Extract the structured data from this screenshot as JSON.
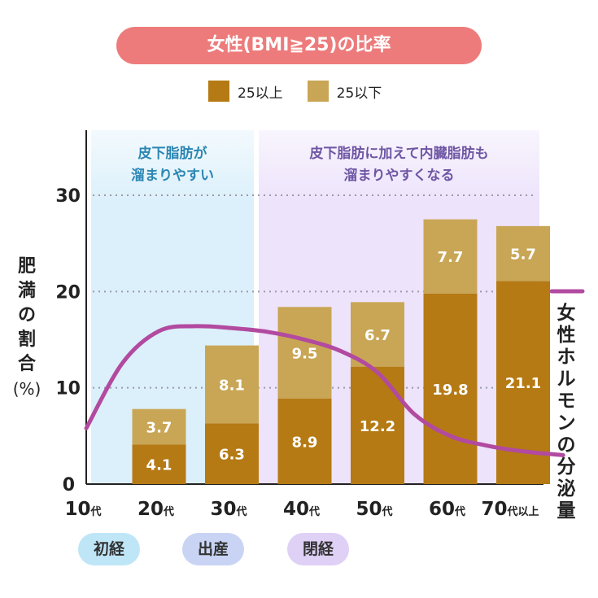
{
  "title": "女性(BMI≧25)の比率",
  "legend": {
    "above_label": "25以上",
    "below_label": "25以下"
  },
  "colors": {
    "above": "#b57a14",
    "below": "#c9a655",
    "curve": "#b24aa0",
    "region_young_bg": "#dcf0fb",
    "region_old_bg": "#ede3fb",
    "region_young_text": "#2b86b3",
    "region_old_text": "#6e56a4",
    "title_bg": "#ed7b7b",
    "pill_menarche": "#bfe6f7",
    "pill_childbirth": "#c9d4f5",
    "pill_menopause": "#dfd0f6"
  },
  "y_axis_label": [
    "肥",
    "満",
    "の",
    "割",
    "合",
    "(%)"
  ],
  "right_label": [
    "女",
    "性",
    "ホ",
    "ル",
    "モ",
    "ン",
    "の",
    "分",
    "泌",
    "量"
  ],
  "regions": {
    "young": [
      "皮下脂肪が",
      "溜まりやすい"
    ],
    "old": [
      "皮下脂肪に加えて内臓脂肪も",
      "溜まりやすくなる"
    ]
  },
  "events": [
    {
      "label": "初経",
      "name": "pill-menarche"
    },
    {
      "label": "出産",
      "name": "pill-childbirth"
    },
    {
      "label": "閉経",
      "name": "pill-menopause"
    }
  ],
  "chart_data": {
    "type": "bar",
    "stacked": true,
    "categories": [
      {
        "num": "10",
        "suffix": "代"
      },
      {
        "num": "20",
        "suffix": "代"
      },
      {
        "num": "30",
        "suffix": "代"
      },
      {
        "num": "40",
        "suffix": "代"
      },
      {
        "num": "50",
        "suffix": "代"
      },
      {
        "num": "60",
        "suffix": "代"
      },
      {
        "num": "70",
        "suffix": "代以上"
      }
    ],
    "series": [
      {
        "name": "25以上",
        "values": [
          null,
          4.1,
          6.3,
          8.9,
          12.2,
          19.8,
          21.1
        ]
      },
      {
        "name": "25以下",
        "values": [
          null,
          3.7,
          8.1,
          9.5,
          6.7,
          7.7,
          5.7
        ]
      }
    ],
    "yticks": [
      0,
      10,
      20,
      30
    ],
    "ylim": [
      0,
      37
    ],
    "grid": "dotted horizontal at 10, 20, 30",
    "hormone_curve_relative": [
      [
        0.0,
        5.8
      ],
      [
        0.5,
        12.6
      ],
      [
        1.0,
        15.9
      ],
      [
        1.5,
        16.4
      ],
      [
        2.0,
        16.2
      ],
      [
        2.5,
        15.8
      ],
      [
        3.0,
        15.0
      ],
      [
        3.5,
        13.8
      ],
      [
        4.0,
        11.6
      ],
      [
        4.5,
        7.3
      ],
      [
        5.0,
        5.0
      ],
      [
        5.5,
        4.0
      ],
      [
        6.0,
        3.4
      ],
      [
        6.55,
        3.0
      ]
    ]
  }
}
